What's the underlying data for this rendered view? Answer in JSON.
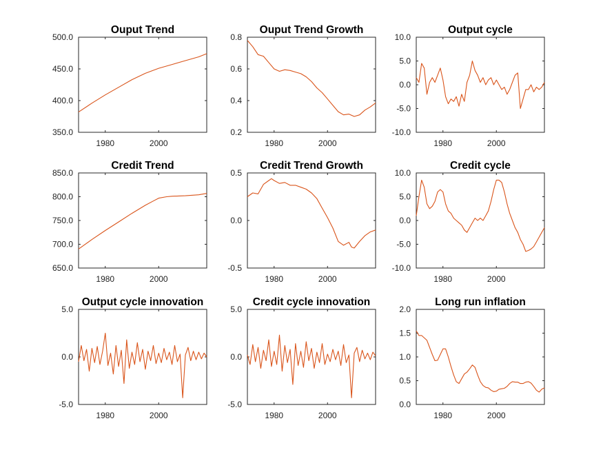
{
  "figure": {
    "line_color": "#d95319"
  },
  "chart_data": [
    {
      "type": "line",
      "title": "Ouput Trend",
      "xlim": [
        1970,
        2018
      ],
      "xticks": [
        1980,
        2000
      ],
      "xtick_labels": [
        "1980",
        "2000"
      ],
      "ylim": [
        350,
        500
      ],
      "yticks": [
        350,
        400,
        450,
        500
      ],
      "ytick_labels": [
        "350.0",
        "400.0",
        "450.0",
        "500.0"
      ],
      "x": [
        1970,
        1975,
        1980,
        1985,
        1990,
        1995,
        2000,
        2005,
        2010,
        2015,
        2018
      ],
      "y": [
        382,
        396,
        409,
        421,
        433,
        443,
        451,
        457,
        463,
        469,
        474
      ]
    },
    {
      "type": "line",
      "title": "Ouput Trend Growth",
      "xlim": [
        1970,
        2018
      ],
      "xticks": [
        1980,
        2000
      ],
      "xtick_labels": [
        "1980",
        "2000"
      ],
      "ylim": [
        0.2,
        0.8
      ],
      "yticks": [
        0.2,
        0.4,
        0.6,
        0.8
      ],
      "ytick_labels": [
        "0.2",
        "0.4",
        "0.6",
        "0.8"
      ],
      "x": [
        1970,
        1972,
        1974,
        1976,
        1978,
        1980,
        1982,
        1984,
        1986,
        1988,
        1990,
        1992,
        1994,
        1996,
        1998,
        2000,
        2002,
        2004,
        2006,
        2008,
        2010,
        2012,
        2014,
        2016,
        2018
      ],
      "y": [
        0.78,
        0.74,
        0.69,
        0.68,
        0.64,
        0.6,
        0.585,
        0.595,
        0.59,
        0.58,
        0.57,
        0.55,
        0.52,
        0.48,
        0.45,
        0.41,
        0.37,
        0.33,
        0.31,
        0.315,
        0.3,
        0.31,
        0.34,
        0.36,
        0.385
      ]
    },
    {
      "type": "line",
      "title": "Output cycle",
      "xlim": [
        1970,
        2018
      ],
      "xticks": [
        1980,
        2000
      ],
      "xtick_labels": [
        "1980",
        "2000"
      ],
      "ylim": [
        -10,
        10
      ],
      "yticks": [
        -10,
        -5,
        0,
        5,
        10
      ],
      "ytick_labels": [
        "-10.0",
        "-5.0",
        "0.0",
        "5.0",
        "10.0"
      ],
      "x": [
        1970,
        1971,
        1972,
        1973,
        1974,
        1975,
        1976,
        1977,
        1978,
        1979,
        1980,
        1981,
        1982,
        1983,
        1984,
        1985,
        1986,
        1987,
        1988,
        1989,
        1990,
        1991,
        1992,
        1993,
        1994,
        1995,
        1996,
        1997,
        1998,
        1999,
        2000,
        2001,
        2002,
        2003,
        2004,
        2005,
        2006,
        2007,
        2008,
        2009,
        2010,
        2011,
        2012,
        2013,
        2014,
        2015,
        2016,
        2017,
        2018
      ],
      "y": [
        1.5,
        0.5,
        4.5,
        3.5,
        -2.0,
        0.5,
        1.5,
        0.5,
        2.0,
        3.5,
        1.0,
        -2.5,
        -4.0,
        -3.0,
        -3.5,
        -2.5,
        -4.5,
        -2.0,
        -3.5,
        0.5,
        2.0,
        5.0,
        3.0,
        2.0,
        0.5,
        1.5,
        0.0,
        1.0,
        1.5,
        0.0,
        1.0,
        0.0,
        -1.0,
        -0.5,
        -2.0,
        -1.0,
        0.5,
        2.0,
        2.5,
        -5.0,
        -3.0,
        -1.0,
        -1.0,
        0.0,
        -1.5,
        -0.5,
        -1.0,
        -0.5,
        0.5
      ]
    },
    {
      "type": "line",
      "title": "Credit Trend",
      "xlim": [
        1970,
        2018
      ],
      "xticks": [
        1980,
        2000
      ],
      "xtick_labels": [
        "1980",
        "2000"
      ],
      "ylim": [
        650,
        850
      ],
      "yticks": [
        650,
        700,
        750,
        800,
        850
      ],
      "ytick_labels": [
        "650.0",
        "700.0",
        "750.0",
        "800.0",
        "850.0"
      ],
      "x": [
        1970,
        1975,
        1980,
        1985,
        1990,
        1995,
        1998,
        2000,
        2003,
        2005,
        2010,
        2015,
        2018
      ],
      "y": [
        690,
        710,
        729,
        747,
        765,
        782,
        791,
        797,
        800,
        801,
        802,
        804,
        807
      ]
    },
    {
      "type": "line",
      "title": "Credit Trend Growth",
      "xlim": [
        1970,
        2018
      ],
      "xticks": [
        1980,
        2000
      ],
      "xtick_labels": [
        "1980",
        "2000"
      ],
      "ylim": [
        -0.5,
        0.5
      ],
      "yticks": [
        -0.5,
        0,
        0.5
      ],
      "ytick_labels": [
        "-0.5",
        "0.0",
        "0.5"
      ],
      "x": [
        1970,
        1972,
        1974,
        1976,
        1978,
        1979,
        1980,
        1982,
        1984,
        1986,
        1988,
        1990,
        1992,
        1994,
        1996,
        1998,
        2000,
        2002,
        2004,
        2006,
        2008,
        2009,
        2010,
        2012,
        2014,
        2016,
        2018
      ],
      "y": [
        0.25,
        0.29,
        0.28,
        0.38,
        0.42,
        0.44,
        0.42,
        0.39,
        0.4,
        0.37,
        0.37,
        0.35,
        0.33,
        0.29,
        0.23,
        0.13,
        0.03,
        -0.08,
        -0.22,
        -0.26,
        -0.23,
        -0.28,
        -0.29,
        -0.22,
        -0.16,
        -0.12,
        -0.1
      ]
    },
    {
      "type": "line",
      "title": "Credit cycle",
      "xlim": [
        1970,
        2018
      ],
      "xticks": [
        1980,
        2000
      ],
      "xtick_labels": [
        "1980",
        "2000"
      ],
      "ylim": [
        -10,
        10
      ],
      "yticks": [
        -10,
        -5,
        0,
        5,
        10
      ],
      "ytick_labels": [
        "-10.0",
        "-5.0",
        "0.0",
        "5.0",
        "10.0"
      ],
      "x": [
        1970,
        1971,
        1972,
        1973,
        1974,
        1975,
        1976,
        1977,
        1978,
        1979,
        1980,
        1981,
        1982,
        1983,
        1984,
        1985,
        1986,
        1987,
        1988,
        1989,
        1990,
        1991,
        1992,
        1993,
        1994,
        1995,
        1996,
        1997,
        1998,
        1999,
        2000,
        2001,
        2002,
        2003,
        2004,
        2005,
        2006,
        2007,
        2008,
        2009,
        2010,
        2011,
        2012,
        2013,
        2014,
        2015,
        2016,
        2017,
        2018
      ],
      "y": [
        1.0,
        5.0,
        8.5,
        7.0,
        3.5,
        2.5,
        3.0,
        4.0,
        6.0,
        6.5,
        6.0,
        3.5,
        2.0,
        1.5,
        0.5,
        0.0,
        -0.5,
        -1.0,
        -2.0,
        -2.5,
        -1.5,
        -0.5,
        0.5,
        0.0,
        0.5,
        0.0,
        1.0,
        2.0,
        4.0,
        6.5,
        8.5,
        8.5,
        8.0,
        6.0,
        3.5,
        1.5,
        0.0,
        -1.5,
        -2.5,
        -4.0,
        -5.0,
        -6.5,
        -6.3,
        -6.0,
        -5.5,
        -4.5,
        -3.5,
        -2.5,
        -1.5
      ]
    },
    {
      "type": "line",
      "title": "Output cycle innovation",
      "xlim": [
        1970,
        2018
      ],
      "xticks": [
        1980,
        2000
      ],
      "xtick_labels": [
        "1980",
        "2000"
      ],
      "ylim": [
        -5,
        5
      ],
      "yticks": [
        -5,
        0,
        5
      ],
      "ytick_labels": [
        "-5.0",
        "0.0",
        "5.0"
      ],
      "x": [
        1970,
        1971,
        1972,
        1973,
        1974,
        1975,
        1976,
        1977,
        1978,
        1979,
        1980,
        1981,
        1982,
        1983,
        1984,
        1985,
        1986,
        1987,
        1988,
        1989,
        1990,
        1991,
        1992,
        1993,
        1994,
        1995,
        1996,
        1997,
        1998,
        1999,
        2000,
        2001,
        2002,
        2003,
        2004,
        2005,
        2006,
        2007,
        2008,
        2009,
        2010,
        2011,
        2012,
        2013,
        2014,
        2015,
        2016,
        2017,
        2018
      ],
      "y": [
        -0.5,
        1.2,
        -0.4,
        0.8,
        -1.5,
        0.9,
        -0.6,
        1.1,
        -0.8,
        0.6,
        2.5,
        -0.9,
        0.4,
        -1.8,
        1.2,
        -1.0,
        0.7,
        -2.8,
        1.8,
        -1.2,
        0.5,
        -0.8,
        1.5,
        -0.5,
        0.8,
        -1.3,
        0.6,
        -0.4,
        1.2,
        -0.7,
        0.4,
        -0.6,
        0.9,
        -0.3,
        0.5,
        -0.8,
        1.2,
        -0.5,
        0.3,
        -4.3,
        0.2,
        1.0,
        -0.4,
        0.6,
        -0.3,
        0.5,
        -0.2,
        0.4,
        0.0
      ]
    },
    {
      "type": "line",
      "title": "Credit cycle innovation",
      "xlim": [
        1970,
        2018
      ],
      "xticks": [
        1980,
        2000
      ],
      "xtick_labels": [
        "1980",
        "2000"
      ],
      "ylim": [
        -5,
        5
      ],
      "yticks": [
        -5,
        0,
        5
      ],
      "ytick_labels": [
        "-5.0",
        "0.0",
        "5.0"
      ],
      "x": [
        1970,
        1971,
        1972,
        1973,
        1974,
        1975,
        1976,
        1977,
        1978,
        1979,
        1980,
        1981,
        1982,
        1983,
        1984,
        1985,
        1986,
        1987,
        1988,
        1989,
        1990,
        1991,
        1992,
        1993,
        1994,
        1995,
        1996,
        1997,
        1998,
        1999,
        2000,
        2001,
        2002,
        2003,
        2004,
        2005,
        2006,
        2007,
        2008,
        2009,
        2010,
        2011,
        2012,
        2013,
        2014,
        2015,
        2016,
        2017,
        2018
      ],
      "y": [
        0.2,
        -0.8,
        1.3,
        -0.5,
        1.0,
        -1.2,
        0.7,
        -0.4,
        1.8,
        -1.0,
        0.6,
        -0.8,
        2.3,
        -1.5,
        1.2,
        -0.6,
        0.8,
        -2.9,
        1.4,
        -0.9,
        0.6,
        -1.1,
        1.6,
        -0.4,
        0.9,
        -1.2,
        0.5,
        -0.6,
        1.4,
        -0.8,
        0.3,
        -0.5,
        0.8,
        -0.3,
        0.6,
        -0.9,
        1.3,
        -0.6,
        0.2,
        -4.3,
        0.4,
        1.0,
        -0.5,
        0.7,
        -0.2,
        0.4,
        -0.3,
        0.5,
        0.1
      ]
    },
    {
      "type": "line",
      "title": "Long run inflation",
      "xlim": [
        1970,
        2018
      ],
      "xticks": [
        1980,
        2000
      ],
      "xtick_labels": [
        "1980",
        "2000"
      ],
      "ylim": [
        0,
        2
      ],
      "yticks": [
        0,
        0.5,
        1,
        1.5,
        2
      ],
      "ytick_labels": [
        "0.0",
        "0.5",
        "1.0",
        "1.5",
        "2.0"
      ],
      "x": [
        1970,
        1971,
        1972,
        1974,
        1975,
        1976,
        1977,
        1978,
        1979,
        1980,
        1981,
        1982,
        1983,
        1984,
        1985,
        1986,
        1987,
        1988,
        1989,
        1990,
        1991,
        1992,
        1993,
        1994,
        1995,
        1996,
        1997,
        1998,
        1999,
        2000,
        2001,
        2002,
        2003,
        2004,
        2005,
        2006,
        2007,
        2008,
        2009,
        2010,
        2011,
        2012,
        2013,
        2014,
        2015,
        2016,
        2017,
        2018
      ],
      "y": [
        1.55,
        1.45,
        1.45,
        1.35,
        1.2,
        1.05,
        0.92,
        0.93,
        1.05,
        1.17,
        1.17,
        1.0,
        0.8,
        0.62,
        0.48,
        0.44,
        0.54,
        0.64,
        0.68,
        0.75,
        0.83,
        0.78,
        0.62,
        0.48,
        0.4,
        0.36,
        0.35,
        0.3,
        0.27,
        0.28,
        0.32,
        0.33,
        0.34,
        0.38,
        0.44,
        0.48,
        0.47,
        0.47,
        0.44,
        0.44,
        0.47,
        0.48,
        0.45,
        0.38,
        0.3,
        0.26,
        0.32,
        0.35
      ]
    }
  ]
}
